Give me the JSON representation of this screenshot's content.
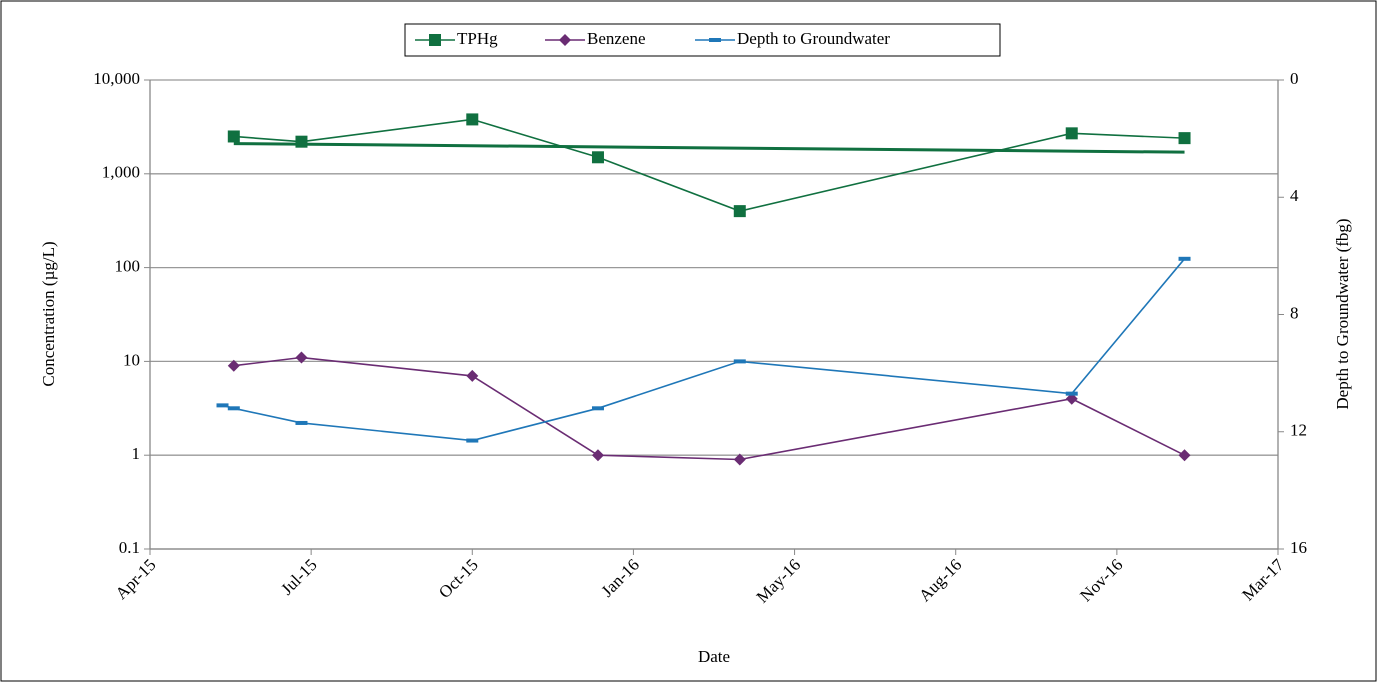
{
  "chart_data": {
    "type": "line",
    "x_label": "Date",
    "y_label": "Concentration (µg/L)",
    "y2_label": "Depth to Groundwater (fbg)",
    "y_log": true,
    "grid": true,
    "legend": "top",
    "xlim": [
      "2015-04-01",
      "2017-03-01"
    ],
    "xticks": [
      {
        "value": "2015-04-01",
        "label": "Apr-15"
      },
      {
        "value": "2015-07-10",
        "label": "Jul-15"
      },
      {
        "value": "2015-10-18",
        "label": "Oct-15"
      },
      {
        "value": "2016-01-26",
        "label": "Jan-16"
      },
      {
        "value": "2016-05-05",
        "label": "May-16"
      },
      {
        "value": "2016-08-13",
        "label": "Aug-16"
      },
      {
        "value": "2016-11-21",
        "label": "Nov-16"
      },
      {
        "value": "2017-03-01",
        "label": "Mar-17"
      }
    ],
    "ylim": [
      0.1,
      10000
    ],
    "yticks": [
      0.1,
      1,
      10,
      100,
      {
        "value": 1000,
        "label": "1,000"
      },
      {
        "value": 10000,
        "label": "10,000"
      }
    ],
    "y2lim": [
      16,
      0
    ],
    "y2ticks": [
      0,
      4,
      8,
      12,
      16
    ],
    "series": [
      {
        "name": "TPHg",
        "color": "#107040",
        "marker": "square",
        "x": [
          "2015-05-23",
          "2015-07-04",
          "2015-10-18",
          "2016-01-04",
          "2016-04-01",
          "2016-10-24",
          "2017-01-02"
        ],
        "values": [
          2500,
          2200,
          3800,
          1500,
          400,
          2700,
          2400
        ]
      },
      {
        "name": "Benzene",
        "color": "#6a2c73",
        "marker": "diamond",
        "x": [
          "2015-05-23",
          "2015-07-04",
          "2015-10-18",
          "2016-01-04",
          "2016-04-01",
          "2016-10-24",
          "2017-01-02"
        ],
        "values": [
          9,
          11,
          7,
          1,
          0.9,
          4,
          1
        ]
      },
      {
        "name": "Depth to Groundwater",
        "color": "#1f77b8",
        "marker": "dash",
        "axis": "y2",
        "x": [
          "2015-05-16",
          "2015-05-23",
          "2015-07-04",
          "2015-10-18",
          "2016-01-04",
          "2016-04-01",
          "2016-10-24",
          "2017-01-02"
        ],
        "values": [
          11.1,
          11.2,
          11.7,
          12.3,
          11.2,
          9.6,
          10.7,
          6.1
        ]
      }
    ],
    "trendline": {
      "color": "#107040",
      "x": [
        "2015-05-23",
        "2017-01-02"
      ],
      "values": [
        2100,
        1700
      ]
    }
  }
}
